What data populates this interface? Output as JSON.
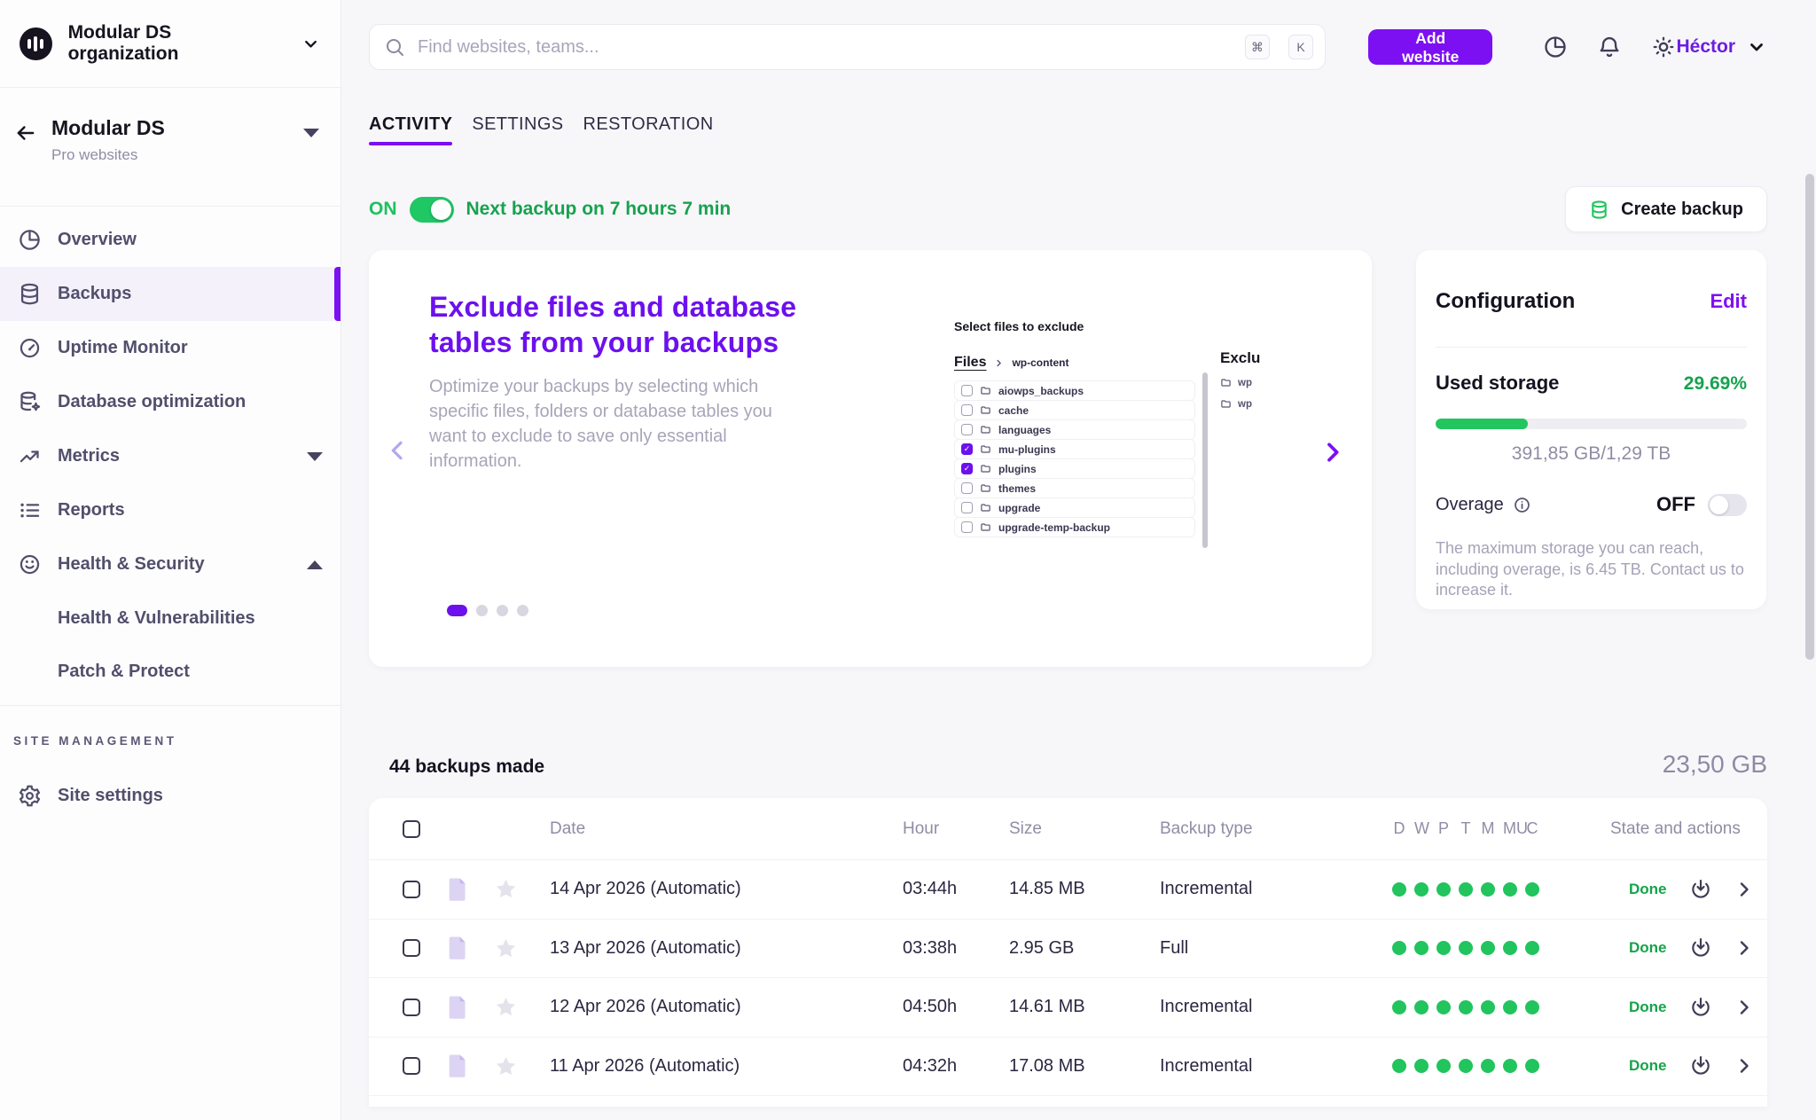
{
  "org_switcher": {
    "name": "Modular DS organization"
  },
  "site_switcher": {
    "name": "Modular DS",
    "plan": "Pro websites"
  },
  "topbar": {
    "search_placeholder": "Find websites, teams...",
    "shortcut_keys": [
      "⌘",
      "K"
    ],
    "add_website": "Add website",
    "user_name": "Héctor"
  },
  "sidebar": {
    "items": [
      {
        "label": "Overview",
        "icon": "pie-chart-icon",
        "active": false
      },
      {
        "label": "Backups",
        "icon": "database-icon",
        "active": true
      },
      {
        "label": "Uptime Monitor",
        "icon": "gauge-icon",
        "active": false
      },
      {
        "label": "Database optimization",
        "icon": "database-gear-icon",
        "active": false
      },
      {
        "label": "Metrics",
        "icon": "trending-up-icon",
        "active": false,
        "caret": "down"
      },
      {
        "label": "Reports",
        "icon": "list-icon",
        "active": false
      },
      {
        "label": "Health & Security",
        "icon": "smiley-icon",
        "active": false,
        "caret": "up"
      }
    ],
    "subitems": [
      "Health & Vulnerabilities",
      "Patch & Protect"
    ],
    "section_label": "SITE MANAGEMENT",
    "settings_label": "Site settings"
  },
  "tabs": [
    {
      "label": "ACTIVITY",
      "active": true
    },
    {
      "label": "SETTINGS",
      "active": false
    },
    {
      "label": "RESTORATION",
      "active": false
    }
  ],
  "backup_schedule": {
    "state": "ON",
    "next_label": "Next backup on 7 hours 7 min"
  },
  "create_backup_label": "Create backup",
  "carousel": {
    "title_lines": [
      "Exclude files and database",
      "tables from your backups"
    ],
    "description": "Optimize your backups by selecting which specific files, folders or database tables you want to exclude to save only essential information.",
    "pagination": {
      "count": 4,
      "active_index": 0
    },
    "preview": {
      "title": "Select files to exclude",
      "breadcrumb_root": "Files",
      "breadcrumb_current": "wp-content",
      "folders": [
        {
          "name": "aiowps_backups",
          "checked": false
        },
        {
          "name": "cache",
          "checked": false
        },
        {
          "name": "languages",
          "checked": false
        },
        {
          "name": "mu-plugins",
          "checked": true
        },
        {
          "name": "plugins",
          "checked": true
        },
        {
          "name": "themes",
          "checked": false
        },
        {
          "name": "upgrade",
          "checked": false
        },
        {
          "name": "upgrade-temp-backup",
          "checked": false
        }
      ],
      "excluded_title": "Exclu",
      "excluded_items": [
        "wp",
        "wp"
      ]
    }
  },
  "configuration": {
    "title": "Configuration",
    "edit_label": "Edit",
    "used_storage_label": "Used storage",
    "used_percent_label": "29.69%",
    "used_percent_value": 29.69,
    "usage_label": "391,85 GB/1,29 TB",
    "overage_label": "Overage",
    "overage_state": "OFF",
    "note": "The maximum storage you can reach, including overage, is 6.45 TB. Contact us to increase it."
  },
  "backups_list": {
    "summary": "44 backups made",
    "total_size": "23,50 GB",
    "headers": {
      "date": "Date",
      "hour": "Hour",
      "size": "Size",
      "type": "Backup type",
      "state": "State and actions"
    },
    "day_letters": [
      "D",
      "W",
      "P",
      "T",
      "M",
      "MU",
      "C"
    ],
    "rows": [
      {
        "date": "14 Apr 2026 (Automatic)",
        "hour": "03:44h",
        "size": "14.85 MB",
        "type": "Incremental",
        "status": "Done",
        "dots": 7
      },
      {
        "date": "13 Apr 2026 (Automatic)",
        "hour": "03:38h",
        "size": "2.95 GB",
        "type": "Full",
        "status": "Done",
        "dots": 7
      },
      {
        "date": "12 Apr 2026 (Automatic)",
        "hour": "04:50h",
        "size": "14.61 MB",
        "type": "Incremental",
        "status": "Done",
        "dots": 7
      },
      {
        "date": "11 Apr 2026 (Automatic)",
        "hour": "04:32h",
        "size": "17.08 MB",
        "type": "Incremental",
        "status": "Done",
        "dots": 7
      }
    ]
  },
  "colors": {
    "accent_purple": "#7b10f2",
    "heading_purple": "#6c10ee",
    "green": "#22c55e",
    "green_dark": "#16a34a",
    "text_dark": "#17141f",
    "text_gray": "#8f8da5"
  }
}
